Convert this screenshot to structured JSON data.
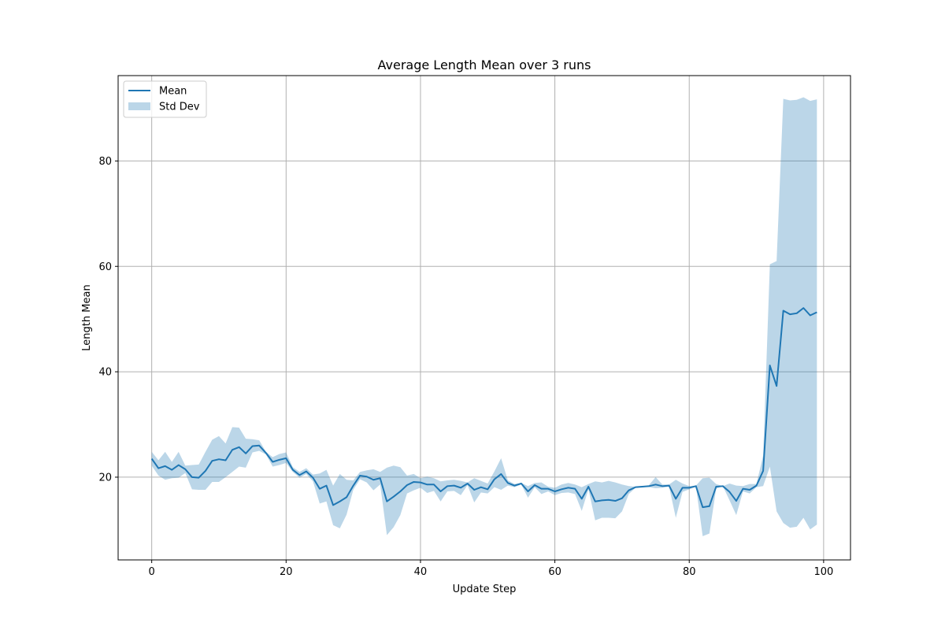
{
  "chart_data": {
    "type": "line",
    "title": "Average Length Mean over 3 runs",
    "xlabel": "Update Step",
    "ylabel": "Length Mean",
    "xlim": [
      -5,
      104
    ],
    "ylim": [
      4.3,
      96.2
    ],
    "x_ticks": [
      0,
      20,
      40,
      60,
      80,
      100
    ],
    "y_ticks": [
      20,
      40,
      60,
      80
    ],
    "grid": true,
    "legend_position": "top-left",
    "colors": {
      "mean": "#1f77b4",
      "band": "#1f77b4",
      "band_opacity": 0.3,
      "grid": "#b0b0b0"
    },
    "x": [
      0,
      1,
      2,
      3,
      4,
      5,
      6,
      7,
      8,
      9,
      10,
      11,
      12,
      13,
      14,
      15,
      16,
      17,
      18,
      19,
      20,
      21,
      22,
      23,
      24,
      25,
      26,
      27,
      28,
      29,
      30,
      31,
      32,
      33,
      34,
      35,
      36,
      37,
      38,
      39,
      40,
      41,
      42,
      43,
      44,
      45,
      46,
      47,
      48,
      49,
      50,
      51,
      52,
      53,
      54,
      55,
      56,
      57,
      58,
      59,
      60,
      61,
      62,
      63,
      64,
      65,
      66,
      67,
      68,
      69,
      70,
      71,
      72,
      73,
      74,
      75,
      76,
      77,
      78,
      79,
      80,
      81,
      82,
      83,
      84,
      85,
      86,
      87,
      88,
      89,
      90,
      91,
      92,
      93,
      94,
      95,
      96,
      97,
      98,
      99
    ],
    "series": [
      {
        "name": "Mean",
        "kind": "line",
        "values": [
          23.5,
          21.7,
          22.1,
          21.4,
          22.3,
          21.5,
          20.0,
          19.9,
          21.2,
          23.1,
          23.4,
          23.2,
          25.2,
          25.7,
          24.5,
          25.9,
          26.0,
          24.6,
          22.9,
          23.3,
          23.6,
          21.4,
          20.4,
          21.1,
          19.9,
          17.8,
          18.4,
          14.7,
          15.4,
          16.2,
          18.4,
          20.3,
          20.1,
          19.5,
          19.8,
          15.4,
          16.3,
          17.3,
          18.5,
          19.1,
          19.0,
          18.6,
          18.6,
          17.3,
          18.3,
          18.4,
          18.0,
          18.8,
          17.6,
          18.1,
          17.7,
          19.6,
          20.6,
          18.9,
          18.4,
          18.8,
          17.3,
          18.5,
          17.8,
          17.8,
          17.3,
          17.7,
          18.0,
          17.8,
          15.9,
          18.2,
          15.4,
          15.6,
          15.7,
          15.5,
          16.0,
          17.5,
          18.1,
          18.2,
          18.3,
          18.6,
          18.3,
          18.4,
          15.9,
          18.0,
          18.0,
          18.3,
          14.3,
          14.5,
          18.2,
          18.3,
          17.2,
          15.5,
          17.8,
          17.6,
          18.4,
          21.2,
          41.2,
          37.3,
          51.6,
          50.9,
          51.1,
          52.1,
          50.7,
          51.3
        ]
      },
      {
        "name": "Std Dev",
        "kind": "band",
        "upper": [
          24.8,
          23.2,
          24.8,
          22.9,
          24.8,
          22.2,
          22.3,
          22.4,
          24.8,
          27.1,
          27.8,
          26.4,
          29.5,
          29.4,
          27.3,
          27.2,
          27.0,
          24.8,
          23.8,
          24.4,
          24.7,
          21.9,
          21.0,
          21.7,
          20.5,
          20.7,
          21.4,
          18.4,
          20.6,
          19.5,
          19.4,
          21.0,
          21.3,
          21.5,
          21.0,
          21.8,
          22.2,
          21.9,
          20.3,
          20.6,
          19.8,
          20.1,
          19.8,
          19.2,
          19.4,
          19.5,
          19.3,
          19.0,
          19.8,
          19.3,
          18.8,
          21.1,
          23.6,
          19.4,
          18.7,
          18.9,
          18.3,
          18.9,
          19.0,
          18.2,
          18.0,
          18.6,
          18.9,
          18.6,
          18.1,
          18.7,
          19.2,
          19.0,
          19.3,
          19.0,
          18.6,
          18.3,
          18.2,
          18.3,
          18.5,
          20.0,
          18.6,
          18.6,
          19.5,
          18.8,
          18.3,
          18.4,
          19.8,
          19.9,
          18.7,
          18.3,
          18.8,
          18.4,
          18.3,
          18.7,
          18.7,
          24.1,
          60.4,
          61.0,
          91.8,
          91.5,
          91.6,
          92.1,
          91.4,
          91.7
        ],
        "lower": [
          22.2,
          20.3,
          19.5,
          19.8,
          19.9,
          20.8,
          17.7,
          17.6,
          17.6,
          19.1,
          19.1,
          20.0,
          21.0,
          22.0,
          21.8,
          24.7,
          25.0,
          24.3,
          22.0,
          22.3,
          22.7,
          21.0,
          19.9,
          20.6,
          19.2,
          15.0,
          15.4,
          10.9,
          10.3,
          12.9,
          17.6,
          19.6,
          19.0,
          17.5,
          18.6,
          9.0,
          10.5,
          12.8,
          16.9,
          17.5,
          18.0,
          17.0,
          17.4,
          15.4,
          17.3,
          17.4,
          16.6,
          18.5,
          15.2,
          17.1,
          16.9,
          18.1,
          17.6,
          18.4,
          18.1,
          18.6,
          16.1,
          18.1,
          16.8,
          17.3,
          16.6,
          17.0,
          17.1,
          16.8,
          13.6,
          17.7,
          11.8,
          12.3,
          12.3,
          12.2,
          13.5,
          16.8,
          18.0,
          18.1,
          18.1,
          17.9,
          18.0,
          18.2,
          12.3,
          17.2,
          17.7,
          18.2,
          8.8,
          9.3,
          17.8,
          18.3,
          15.6,
          12.8,
          17.3,
          16.9,
          18.1,
          18.3,
          22.0,
          13.5,
          11.3,
          10.4,
          10.6,
          12.3,
          10.1,
          11.0
        ]
      }
    ]
  }
}
